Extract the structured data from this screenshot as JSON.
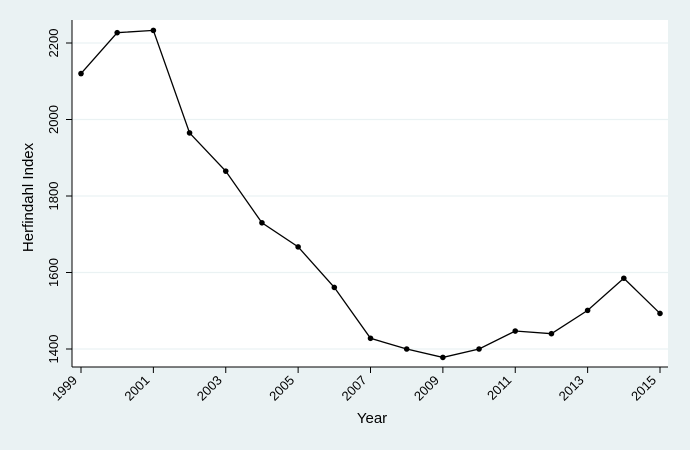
{
  "chart_data": {
    "type": "line",
    "title": "",
    "xlabel": "Year",
    "ylabel": "Herfindahl Index",
    "xlim": [
      1999,
      2015
    ],
    "ylim": [
      1380,
      2250
    ],
    "x_ticks": [
      1999,
      2001,
      2003,
      2005,
      2007,
      2009,
      2011,
      2013,
      2015
    ],
    "y_ticks": [
      1400,
      1600,
      1800,
      2000,
      2200
    ],
    "grid": true,
    "legend": "none",
    "series": [
      {
        "x": [
          1999,
          2000,
          2001,
          2002,
          2003,
          2004,
          2005,
          2006,
          2007,
          2008,
          2009,
          2010,
          2011,
          2012,
          2013,
          2014,
          2015
        ],
        "values": [
          2120,
          2227,
          2233,
          1965,
          1865,
          1730,
          1667,
          1561,
          1428,
          1400,
          1378,
          1400,
          1447,
          1440,
          1501,
          1585,
          1493
        ]
      }
    ],
    "colors": {
      "background": "#eaf2f3",
      "plot_area": "#ffffff",
      "line": "#000000"
    }
  }
}
